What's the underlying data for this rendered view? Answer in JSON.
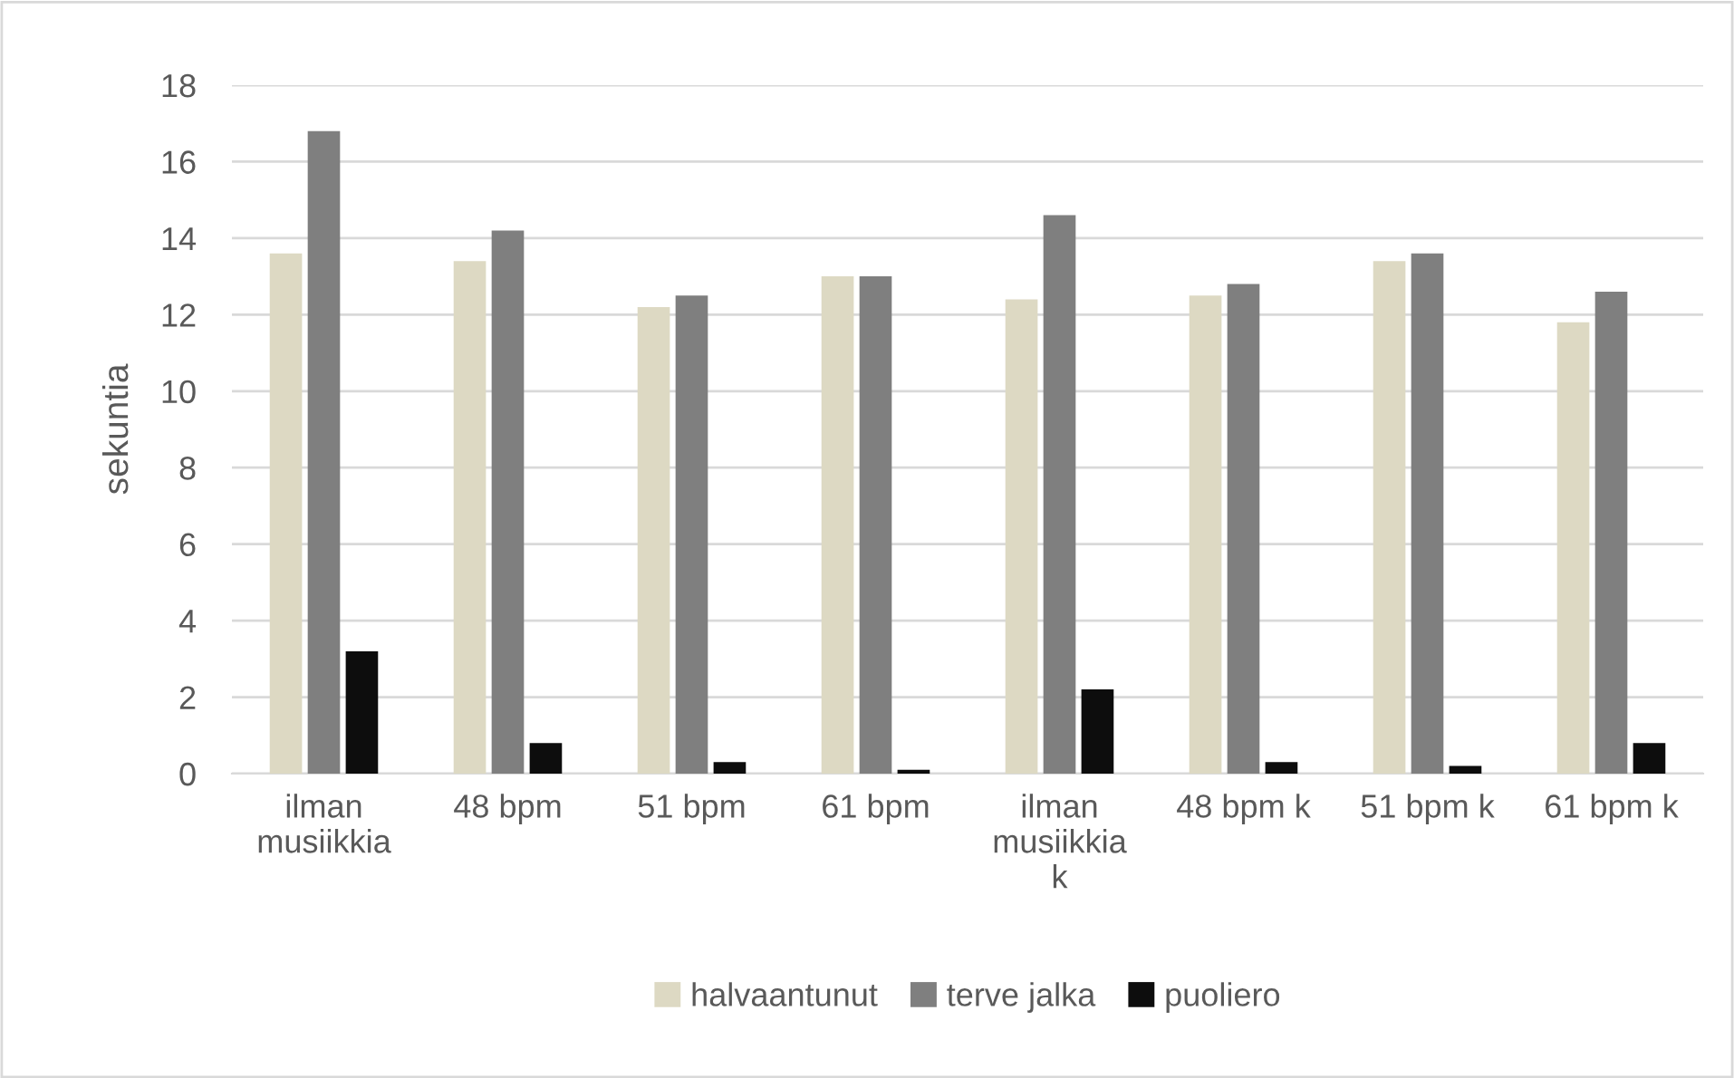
{
  "chart_data": {
    "type": "bar",
    "ylabel": "sekuntia",
    "categories": [
      "ilman musiikkia",
      "48 bpm",
      "51 bpm",
      "61 bpm",
      "ilman musiikkia k",
      "48 bpm k",
      "51 bpm k",
      "61 bpm k"
    ],
    "series": [
      {
        "name": "halvaantunut",
        "color": "#ddd9c3",
        "values": [
          13.6,
          13.4,
          12.2,
          13.0,
          12.4,
          12.5,
          13.4,
          11.8
        ]
      },
      {
        "name": "terve jalka",
        "color": "#7f7f7f",
        "values": [
          16.8,
          14.2,
          12.5,
          13.0,
          14.6,
          12.8,
          13.6,
          12.6
        ]
      },
      {
        "name": "puoliero",
        "color": "#0d0d0d",
        "values": [
          3.2,
          0.8,
          0.3,
          0.1,
          2.2,
          0.3,
          0.2,
          0.8
        ]
      }
    ],
    "ylim": [
      0,
      18
    ],
    "yticks": [
      0,
      2,
      4,
      6,
      8,
      10,
      12,
      14,
      16,
      18
    ],
    "grid": "y",
    "legend": "bottom"
  }
}
